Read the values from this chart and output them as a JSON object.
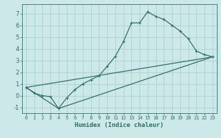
{
  "xlabel": "Humidex (Indice chaleur)",
  "xlim": [
    -0.5,
    23.5
  ],
  "ylim": [
    -1.5,
    7.8
  ],
  "xticks": [
    0,
    1,
    2,
    3,
    4,
    5,
    6,
    7,
    8,
    9,
    10,
    11,
    12,
    13,
    14,
    15,
    16,
    17,
    18,
    19,
    20,
    21,
    22,
    23
  ],
  "yticks": [
    -1,
    0,
    1,
    2,
    3,
    4,
    5,
    6,
    7
  ],
  "bg_color": "#cde8e8",
  "line_color": "#2e6e66",
  "grid_color": "#aacece",
  "line1_x": [
    0,
    1,
    2,
    3,
    4,
    5,
    6,
    7,
    8,
    9,
    10,
    11,
    12,
    13,
    14,
    15,
    16,
    17,
    18,
    19,
    20,
    21,
    22,
    23
  ],
  "line1_y": [
    0.7,
    0.2,
    0.0,
    -0.1,
    -1.1,
    -0.2,
    0.5,
    1.0,
    1.35,
    1.7,
    2.5,
    3.35,
    4.6,
    6.2,
    6.2,
    7.15,
    6.75,
    6.5,
    6.0,
    5.5,
    4.85,
    3.8,
    3.5,
    3.3
  ],
  "line2_x": [
    0,
    4,
    23
  ],
  "line2_y": [
    0.7,
    -1.1,
    3.3
  ],
  "line3_x": [
    0,
    23
  ],
  "line3_y": [
    0.7,
    3.3
  ]
}
